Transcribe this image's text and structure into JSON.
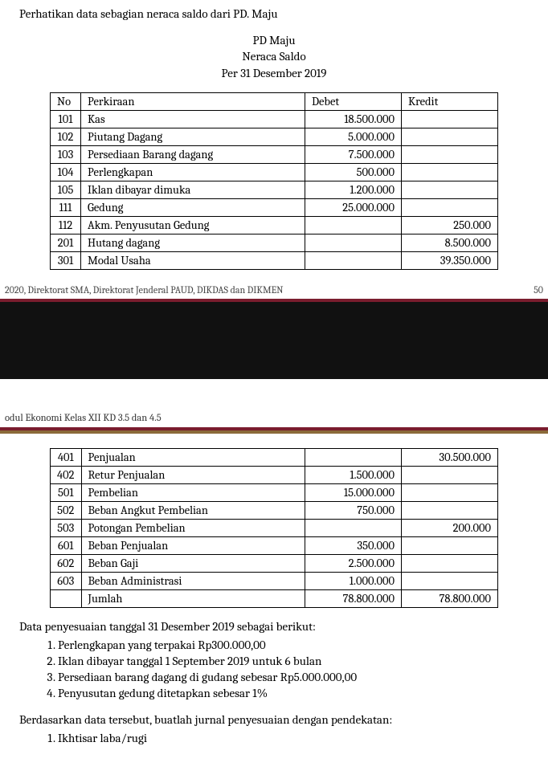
{
  "intro": "Perhatikan data sebagian neraca saldo dari PD. Maju",
  "title": {
    "company": "PD Maju",
    "label": "Neraca Saldo",
    "period": "Per 31 Desember 2019"
  },
  "columns": {
    "no": "No",
    "perkiraan": "Perkiraan",
    "debet": "Debet",
    "kredit": "Kredit"
  },
  "table1": [
    {
      "no": "101",
      "perk": "Kas",
      "debet": "18.500.000",
      "kredit": ""
    },
    {
      "no": "102",
      "perk": "Piutang Dagang",
      "debet": "5.000.000",
      "kredit": ""
    },
    {
      "no": "103",
      "perk": "Persediaan Barang dagang",
      "debet": "7.500.000",
      "kredit": ""
    },
    {
      "no": "104",
      "perk": "Perlengkapan",
      "debet": "500.000",
      "kredit": ""
    },
    {
      "no": "105",
      "perk": "Iklan dibayar dimuka",
      "debet": "1.200.000",
      "kredit": ""
    },
    {
      "no": "111",
      "perk": "Gedung",
      "debet": "25.000.000",
      "kredit": ""
    },
    {
      "no": "112",
      "perk": "Akm. Penyusutan Gedung",
      "debet": "",
      "kredit": "250.000"
    },
    {
      "no": "201",
      "perk": "Hutang dagang",
      "debet": "",
      "kredit": "8.500.000"
    },
    {
      "no": "301",
      "perk": "Modal Usaha",
      "debet": "",
      "kredit": "39.350.000"
    }
  ],
  "footer": {
    "copyright": "2020, Direktorat SMA, Direktorat Jenderal PAUD, DIKDAS dan DIKMEN",
    "page": "50"
  },
  "moduleHeader": "odul Ekonomi Kelas XII KD 3.5 dan 4.5",
  "table2": [
    {
      "no": "401",
      "perk": "Penjualan",
      "debet": "",
      "kredit": "30.500.000"
    },
    {
      "no": "402",
      "perk": "Retur Penjualan",
      "debet": "1.500.000",
      "kredit": ""
    },
    {
      "no": "501",
      "perk": "Pembelian",
      "debet": "15.000.000",
      "kredit": ""
    },
    {
      "no": "502",
      "perk": "Beban Angkut Pembelian",
      "debet": "750.000",
      "kredit": ""
    },
    {
      "no": "503",
      "perk": "Potongan Pembelian",
      "debet": "",
      "kredit": "200.000"
    },
    {
      "no": "601",
      "perk": "Beban Penjualan",
      "debet": "350.000",
      "kredit": ""
    },
    {
      "no": "602",
      "perk": "Beban Gaji",
      "debet": "2.500.000",
      "kredit": ""
    },
    {
      "no": "603",
      "perk": "Beban Administrasi",
      "debet": "1.000.000",
      "kredit": ""
    },
    {
      "no": "",
      "perk": "Jumlah",
      "debet": "78.800.000",
      "kredit": "78.800.000"
    }
  ],
  "adjustments": {
    "intro": "Data penyesuaian tanggal 31 Desember 2019 sebagai berikut:",
    "items": [
      "Perlengkapan yang terpakai Rp300.000,00",
      "Iklan dibayar tanggal 1 September 2019 untuk 6 bulan",
      "Persediaan barang dagang di gudang sebesar Rp5.000.000,00",
      "Penyusutan gedung ditetapkan sebesar 1%"
    ]
  },
  "approach": {
    "intro": "Berdasarkan data tersebut, buatlah jurnal penyesuaian dengan pendekatan:",
    "items": [
      "Ikhtisar laba/rugi"
    ]
  }
}
